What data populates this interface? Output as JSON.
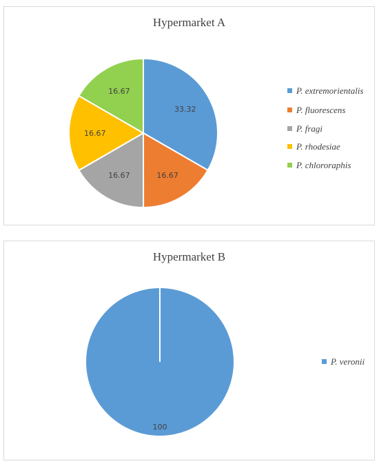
{
  "chart_data": [
    {
      "type": "pie",
      "title": "Hypermarket A",
      "categories": [
        "P. extremorientalis",
        "P. fluorescens",
        "P. fragi",
        "P. rhodesiae",
        "P. chlororaphis"
      ],
      "values": [
        33.32,
        16.67,
        16.67,
        16.67,
        16.67
      ],
      "labels": [
        "33.32",
        "16.67",
        "16.67",
        "16.67",
        "16.67"
      ],
      "colors": [
        "#5b9bd5",
        "#ed7d31",
        "#a5a5a5",
        "#ffc000",
        "#92d050"
      ],
      "legend_position": "right",
      "start_angle_deg": 0,
      "direction": "clockwise"
    },
    {
      "type": "pie",
      "title": "Hypermarket B",
      "categories": [
        "P. veronii"
      ],
      "values": [
        100
      ],
      "labels": [
        "100"
      ],
      "colors": [
        "#5b9bd5"
      ],
      "legend_position": "right",
      "start_angle_deg": 0,
      "direction": "clockwise"
    }
  ]
}
